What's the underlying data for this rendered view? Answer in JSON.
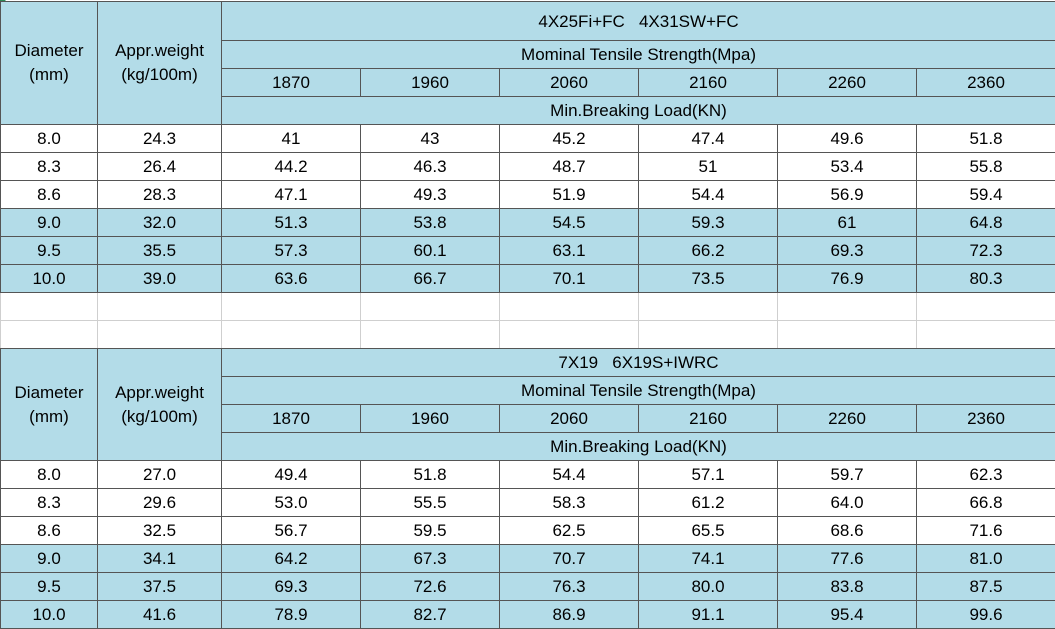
{
  "tables": [
    {
      "col_diameter": [
        "Diameter",
        "(mm)"
      ],
      "col_weight": [
        "Appr.weight",
        "(kg/100m)"
      ],
      "title": "4X25Fi+FC   4X31SW+FC",
      "strength_label": "Mominal Tensile Strength(Mpa)",
      "strengths": [
        "1870",
        "1960",
        "2060",
        "2160",
        "2260",
        "2360"
      ],
      "load_label": "Min.Breaking Load(KN)",
      "rows": [
        [
          "8.0",
          "24.3",
          "41",
          "43",
          "45.2",
          "47.4",
          "49.6",
          "51.8"
        ],
        [
          "8.3",
          "26.4",
          "44.2",
          "46.3",
          "48.7",
          "51",
          "53.4",
          "55.8"
        ],
        [
          "8.6",
          "28.3",
          "47.1",
          "49.3",
          "51.9",
          "54.4",
          "56.9",
          "59.4"
        ],
        [
          "9.0",
          "32.0",
          "51.3",
          "53.8",
          "54.5",
          "59.3",
          "61",
          "64.8"
        ],
        [
          "9.5",
          "35.5",
          "57.3",
          "60.1",
          "63.1",
          "66.2",
          "69.3",
          "72.3"
        ],
        [
          "10.0",
          "39.0",
          "63.6",
          "66.7",
          "70.1",
          "73.5",
          "76.9",
          "80.3"
        ]
      ],
      "shaded_rows": [
        3,
        4,
        5
      ]
    },
    {
      "col_diameter": [
        "Diameter",
        "(mm)"
      ],
      "col_weight": [
        "Appr.weight",
        "(kg/100m)"
      ],
      "title": "7X19   6X19S+IWRC",
      "strength_label": "Mominal Tensile Strength(Mpa)",
      "strengths": [
        "1870",
        "1960",
        "2060",
        "2160",
        "2260",
        "2360"
      ],
      "load_label": "Min.Breaking Load(KN)",
      "rows": [
        [
          "8.0",
          "27.0",
          "49.4",
          "51.8",
          "54.4",
          "57.1",
          "59.7",
          "62.3"
        ],
        [
          "8.3",
          "29.6",
          "53.0",
          "55.5",
          "58.3",
          "61.2",
          "64.0",
          "66.8"
        ],
        [
          "8.6",
          "32.5",
          "56.7",
          "59.5",
          "62.5",
          "65.5",
          "68.6",
          "71.6"
        ],
        [
          "9.0",
          "34.1",
          "64.2",
          "67.3",
          "70.7",
          "74.1",
          "77.6",
          "81.0"
        ],
        [
          "9.5",
          "37.5",
          "69.3",
          "72.6",
          "76.3",
          "80.0",
          "83.8",
          "87.5"
        ],
        [
          "10.0",
          "41.6",
          "78.9",
          "82.7",
          "86.9",
          "91.1",
          "95.4",
          "99.6"
        ]
      ],
      "shaded_rows": [
        3,
        4,
        5
      ]
    }
  ],
  "colors": {
    "header_fill": "#b3dce8",
    "border": "#555555",
    "corner_marker": "#2e8b57"
  }
}
